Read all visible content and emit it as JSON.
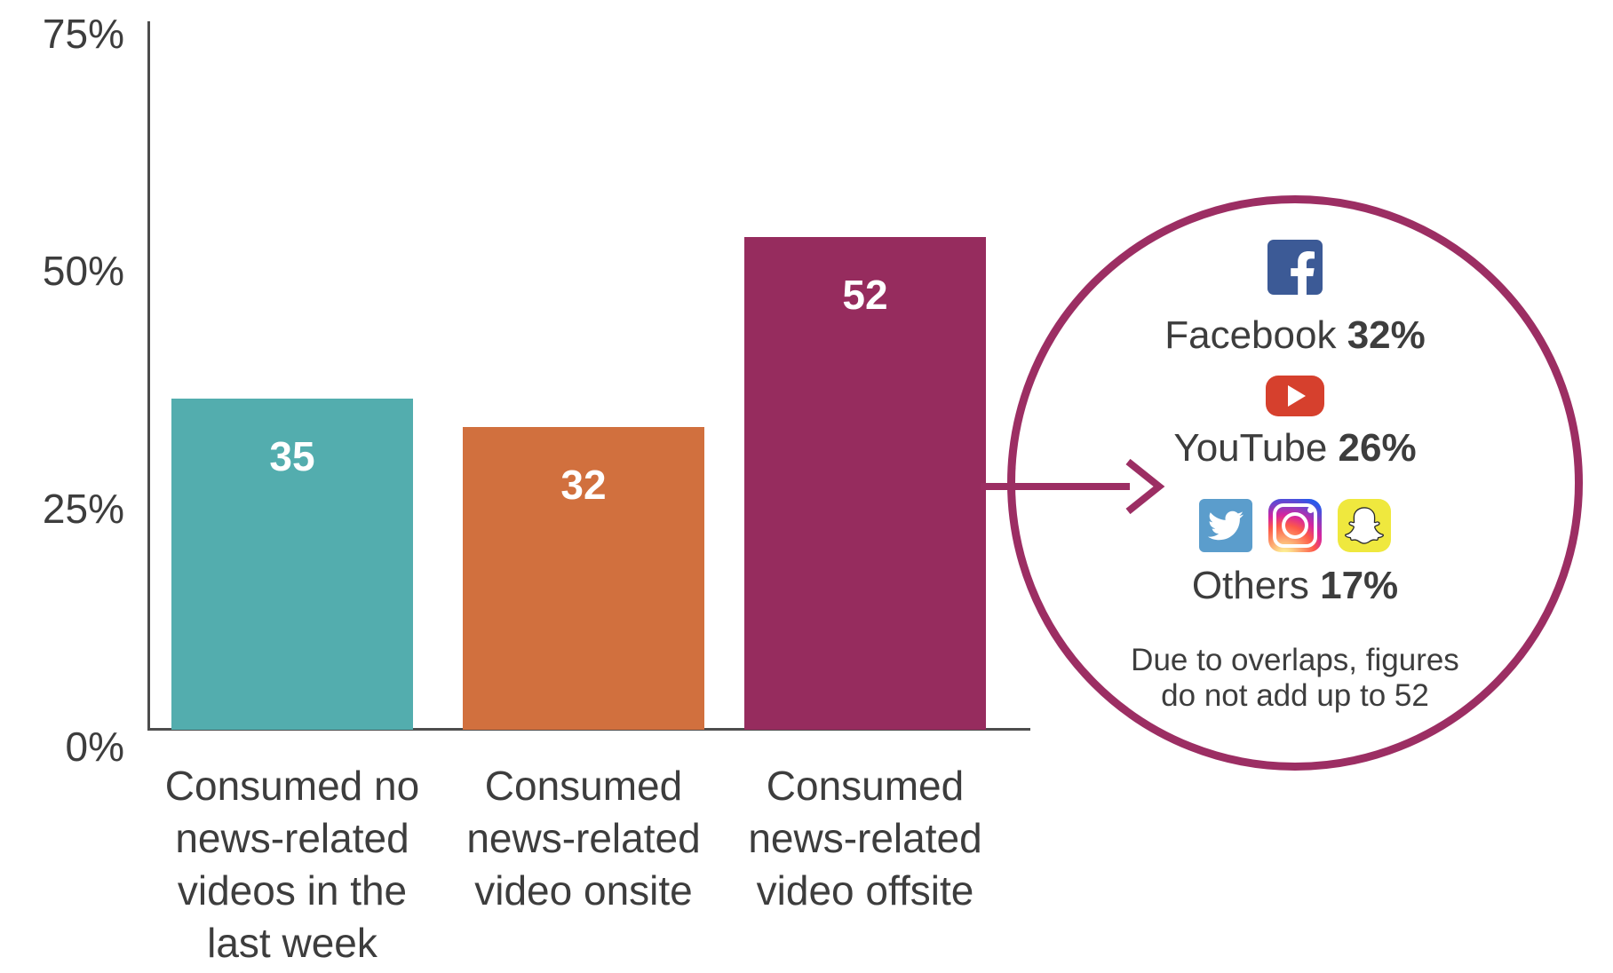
{
  "chart_data": {
    "type": "bar",
    "title": "",
    "xlabel": "",
    "ylabel": "",
    "categories": [
      "Consumed no news-related videos in the last week",
      "Consumed news-related video onsite",
      "Consumed news-related video offsite"
    ],
    "values": [
      35,
      32,
      52
    ],
    "bar_labels": [
      "35",
      "32",
      "52"
    ],
    "bar_colors": [
      "#53adae",
      "#d1703e",
      "#962c5e"
    ],
    "yticks": [
      "75%",
      "50%",
      "25%",
      "0%"
    ],
    "ytick_values": [
      75,
      50,
      25,
      0
    ],
    "ylim": [
      0,
      75
    ],
    "grid": false,
    "legend_position": "none",
    "axis_color": "#4d4d4d",
    "text_color": "#3d3d3d",
    "annotation": {
      "shape": "circle-callout-with-arrow",
      "accent_color": "#9c2e63",
      "points_to_bar": "Consumed news-related video offsite",
      "entries": [
        {
          "name": "Facebook",
          "value": "32%",
          "icons": [
            "facebook-icon"
          ],
          "icon_color": "#3c5a96"
        },
        {
          "name": "YouTube",
          "value": "26%",
          "icons": [
            "youtube-icon"
          ],
          "icon_color": "#d6402d"
        },
        {
          "name": "Others",
          "value": "17%",
          "icons": [
            "twitter-icon",
            "instagram-icon",
            "snapchat-icon"
          ],
          "icon_color": "#5b9dcc, instagram-gradient, #efe83e"
        }
      ],
      "note_lines": [
        "Due to overlaps, figures",
        "do not add up to 52"
      ]
    }
  }
}
